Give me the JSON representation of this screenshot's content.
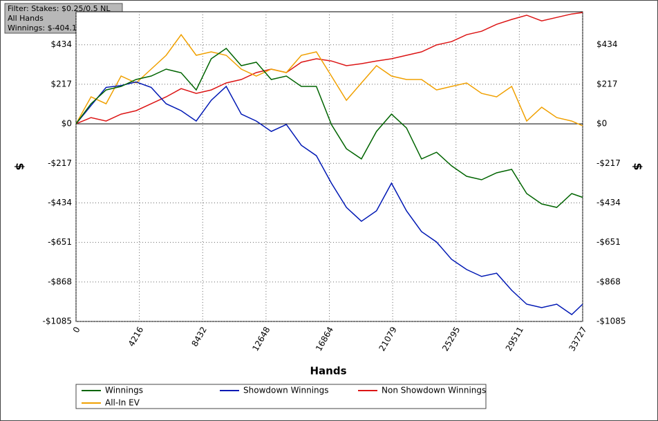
{
  "chart_data": {
    "type": "line",
    "annotations": [
      "Filter: Stakes: $0.25/0.5 NL",
      "All Hands",
      "Winnings: $-404.10"
    ],
    "xlabel": "Hands",
    "ylabel": "$",
    "xlim": [
      0,
      33727
    ],
    "xticks": [
      0,
      4216,
      8432,
      12648,
      16864,
      21079,
      25295,
      29511,
      33727
    ],
    "ylim": [
      -1085,
      615
    ],
    "yticks": [
      {
        "value": -1085,
        "label": "-$1085"
      },
      {
        "value": -868,
        "label": "-$868"
      },
      {
        "value": -651,
        "label": "-$651"
      },
      {
        "value": -434,
        "label": "-$434"
      },
      {
        "value": -217,
        "label": "-$217"
      },
      {
        "value": 0,
        "label": "$0"
      },
      {
        "value": 217,
        "label": "$217"
      },
      {
        "value": 434,
        "label": "$434"
      }
    ],
    "grid": true,
    "x": [
      0,
      1000,
      2000,
      3000,
      4000,
      5000,
      6000,
      7000,
      8000,
      9000,
      10000,
      11000,
      12000,
      13000,
      14000,
      15000,
      16000,
      17000,
      18000,
      19000,
      20000,
      21000,
      22000,
      23000,
      24000,
      25000,
      26000,
      27000,
      28000,
      29000,
      30000,
      31000,
      32000,
      33000,
      33727
    ],
    "series": [
      {
        "name": "Winnings",
        "color": "#006400",
        "values": [
          0,
          110,
          186,
          205,
          243,
          262,
          300,
          280,
          186,
          357,
          414,
          319,
          338,
          243,
          262,
          205,
          205,
          -4,
          -137,
          -193,
          -42,
          53,
          -23,
          -193,
          -156,
          -231,
          -288,
          -307,
          -269,
          -250,
          -383,
          -440,
          -459,
          -383,
          -404
        ]
      },
      {
        "name": "Showdown Winnings",
        "color": "#0018b4",
        "values": [
          0,
          100,
          200,
          210,
          230,
          200,
          110,
          72,
          15,
          129,
          205,
          53,
          15,
          -42,
          -4,
          -118,
          -175,
          -326,
          -459,
          -535,
          -478,
          -326,
          -478,
          -592,
          -649,
          -744,
          -800,
          -838,
          -820,
          -914,
          -990,
          -1009,
          -990,
          -1047,
          -990
        ]
      },
      {
        "name": "Non Showdown Winnings",
        "color": "#dc1414",
        "values": [
          0,
          34,
          15,
          53,
          72,
          110,
          148,
          193,
          167,
          186,
          224,
          243,
          281,
          300,
          281,
          338,
          357,
          345,
          319,
          330,
          345,
          357,
          376,
          395,
          433,
          451,
          489,
          508,
          546,
          573,
          596,
          565,
          584,
          603,
          611
        ]
      },
      {
        "name": "All-In EV",
        "color": "#f0a000",
        "values": [
          0,
          148,
          110,
          262,
          224,
          300,
          376,
          489,
          376,
          395,
          376,
          300,
          262,
          300,
          281,
          376,
          395,
          262,
          129,
          224,
          319,
          262,
          243,
          243,
          186,
          205,
          224,
          167,
          148,
          205,
          15,
          91,
          34,
          15,
          -11
        ]
      }
    ]
  }
}
